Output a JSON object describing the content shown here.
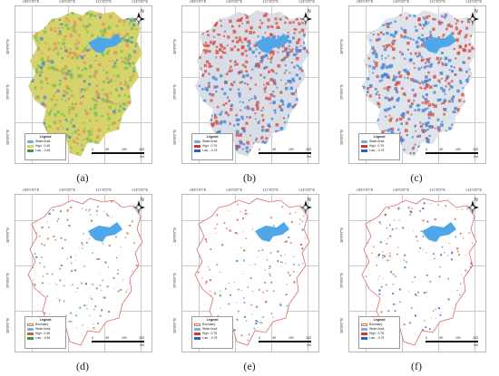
{
  "panels": [
    {
      "id": "a",
      "caption": "(a)",
      "palette": {
        "base": "#d6d36a",
        "hot": "#7bbf5a",
        "cold": "#e88b6a",
        "dot": "#3f8fc9"
      },
      "legend": {
        "title": "Legend",
        "items": [
          {
            "label": "Water Area",
            "color": "#6fb2e8"
          },
          {
            "label": "High : 0.48",
            "color": "#e0d25b"
          },
          {
            "label": "Low : -0.46",
            "color": "#3e9a4a"
          }
        ]
      }
    },
    {
      "id": "b",
      "caption": "(b)",
      "palette": {
        "base": "#d9dde6",
        "hot": "#d9473a",
        "cold": "#3d7fd1",
        "dot": "#1f4fb5"
      },
      "legend": {
        "title": "Legend",
        "items": [
          {
            "label": "Water Area",
            "color": "#6fb2e8"
          },
          {
            "label": "High : 0.75",
            "color": "#d43a2a"
          },
          {
            "label": "Low : -0.75",
            "color": "#2f62c6"
          }
        ]
      }
    },
    {
      "id": "c",
      "caption": "(c)",
      "palette": {
        "base": "#dfe3ea",
        "hot": "#d9473a",
        "cold": "#3d7fd1",
        "dot": "#1f4fb5"
      },
      "legend": {
        "title": "Legend",
        "items": [
          {
            "label": "Water Area",
            "color": "#6fb2e8"
          },
          {
            "label": "High : 0.75",
            "color": "#d43a2a"
          },
          {
            "label": "Low : -0.75",
            "color": "#2f62c6"
          }
        ]
      }
    },
    {
      "id": "d",
      "caption": "(d)",
      "palette": {
        "base": "#ffffff",
        "hot": "#c07a4a",
        "cold": "#5da36a",
        "dot": "#2d6fc8"
      },
      "legend": {
        "title": "Legend",
        "items": [
          {
            "label": "Boundary",
            "color": "#e06a6a"
          },
          {
            "label": "Water Area",
            "color": "#6fb2e8"
          },
          {
            "label": "High : 0.48",
            "color": "#b8703a"
          },
          {
            "label": "Low : -0.46",
            "color": "#3e9a4a"
          }
        ]
      }
    },
    {
      "id": "e",
      "caption": "(e)",
      "palette": {
        "base": "#ffffff",
        "hot": "#c9655a",
        "cold": "#3d7fd1",
        "dot": "#2d6fc8"
      },
      "legend": {
        "title": "Legend",
        "items": [
          {
            "label": "Boundary",
            "color": "#e06a6a"
          },
          {
            "label": "Water Area",
            "color": "#6fb2e8"
          },
          {
            "label": "High : 0.75",
            "color": "#d43a2a"
          },
          {
            "label": "Low : -0.75",
            "color": "#2f62c6"
          }
        ]
      }
    },
    {
      "id": "f",
      "caption": "(f)",
      "palette": {
        "base": "#ffffff",
        "hot": "#c9655a",
        "cold": "#3d5fc1",
        "dot": "#2d4fb8"
      },
      "legend": {
        "title": "Legend",
        "items": [
          {
            "label": "Boundary",
            "color": "#e06a6a"
          },
          {
            "label": "Water Area",
            "color": "#6fb2e8"
          },
          {
            "label": "High : 0.75",
            "color": "#d43a2a"
          },
          {
            "label": "Low : -0.75",
            "color": "#2f62c6"
          }
        ]
      }
    }
  ],
  "grid": {
    "lon_labels": [
      "109°0'0\"E",
      "110°0'0\"E",
      "111°0'0\"E",
      "112°0'0\"E"
    ],
    "lat_labels": [
      "30°0'0\"N",
      "29°0'0\"N",
      "28°0'0\"N"
    ]
  },
  "scale": {
    "labels": [
      "0",
      "50",
      "100",
      "200"
    ],
    "unit": "Km"
  },
  "compass_label": "N",
  "colors": {
    "boundary": "#e06a6a",
    "water": "#4fa6e8",
    "grid": "#c9c9c9"
  }
}
